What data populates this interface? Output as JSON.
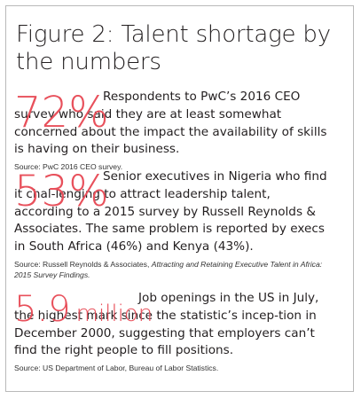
{
  "figure": {
    "title": "Figure 2: Talent shortage by the numbers",
    "stats": [
      {
        "value": "72%",
        "unit": "",
        "text": "Respondents to PwC’s 2016 CEO survey who said they are at least somewhat concerned about the impact the availability of skills is having on their business.",
        "source_prefix": "Source: PwC 2016 CEO survey.",
        "source_italic": "",
        "source_suffix": ""
      },
      {
        "value": "53%",
        "unit": "",
        "text": "Senior executives in Nigeria who find it chal-lenging to attract leadership talent, according to a 2015 survey by Russell Reynolds & Associates. The same problem is reported by execs in South Africa (46%) and Kenya (43%).",
        "source_prefix": "Source: Russell Reynolds & Associates, ",
        "source_italic": "Attracting and Retaining Executive Talent in Africa: 2015 Survey Findings.",
        "source_suffix": ""
      },
      {
        "value": "5.9",
        "unit": "million",
        "text": "Job openings in the US in July, the highest mark since the statistic’s incep-tion in December 2000, suggesting that employers can’t find the right people to fill positions.",
        "source_prefix": "Source: US Department of Labor, Bureau of Labor Statistics.",
        "source_italic": "",
        "source_suffix": ""
      }
    ],
    "colors": {
      "accent": "#e8505b",
      "text": "#231f20",
      "border": "#b9b9b9"
    }
  }
}
